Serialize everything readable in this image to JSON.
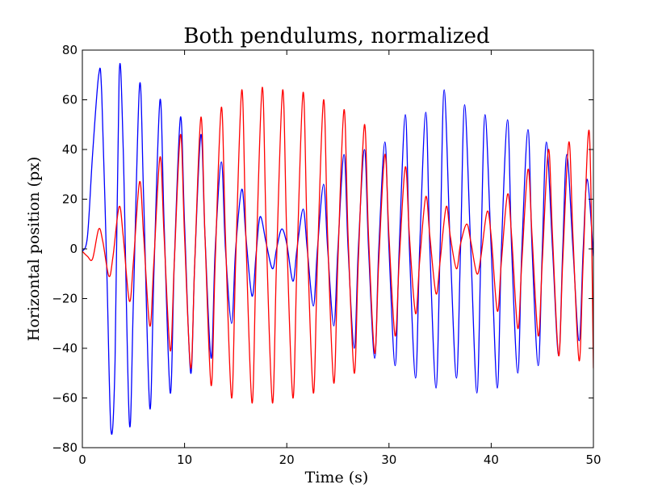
{
  "chart_data": {
    "type": "line",
    "title": "Both pendulums, normalized",
    "xlabel": "Time $(s)$",
    "xlabel_text": "Time (s)",
    "ylabel": "Horizontal position $(px)$",
    "ylabel_text": "Horizontal position (px)",
    "xlim": [
      0,
      50
    ],
    "ylim": [
      -80,
      80
    ],
    "x_ticks": [
      0,
      10,
      20,
      30,
      40,
      50
    ],
    "y_ticks": [
      -80,
      -60,
      -40,
      -20,
      0,
      20,
      40,
      60,
      80
    ],
    "grid": false,
    "series": [
      {
        "color": "#0000ff",
        "points": [
          [
            0.0,
            -1
          ],
          [
            0.5,
            5
          ],
          [
            1.0,
            38
          ],
          [
            1.6,
            70
          ],
          [
            1.9,
            62
          ],
          [
            2.4,
            -10
          ],
          [
            2.8,
            -73
          ],
          [
            3.2,
            -45
          ],
          [
            3.6,
            70
          ],
          [
            4.0,
            40
          ],
          [
            4.6,
            -70
          ],
          [
            5.0,
            -20
          ],
          [
            5.6,
            66
          ],
          [
            6.0,
            20
          ],
          [
            6.6,
            -64
          ],
          [
            7.0,
            -10
          ],
          [
            7.6,
            60
          ],
          [
            8.0,
            10
          ],
          [
            8.6,
            -58
          ],
          [
            9.0,
            -5
          ],
          [
            9.6,
            53
          ],
          [
            10.0,
            10
          ],
          [
            10.6,
            -50
          ],
          [
            11.0,
            -5
          ],
          [
            11.6,
            46
          ],
          [
            12.0,
            5
          ],
          [
            12.6,
            -44
          ],
          [
            13.0,
            0
          ],
          [
            13.6,
            35
          ],
          [
            14.0,
            0
          ],
          [
            14.6,
            -30
          ],
          [
            15.0,
            0
          ],
          [
            15.6,
            24
          ],
          [
            16.0,
            5
          ],
          [
            16.6,
            -19
          ],
          [
            17.0,
            -2
          ],
          [
            17.4,
            13
          ],
          [
            18.0,
            2
          ],
          [
            18.6,
            -8
          ],
          [
            19.0,
            0
          ],
          [
            19.5,
            8
          ],
          [
            20.0,
            2
          ],
          [
            20.6,
            -13
          ],
          [
            21.0,
            0
          ],
          [
            21.6,
            16
          ],
          [
            22.0,
            0
          ],
          [
            22.6,
            -23
          ],
          [
            23.0,
            0
          ],
          [
            23.6,
            26
          ],
          [
            24.0,
            0
          ],
          [
            24.6,
            -31
          ],
          [
            25.0,
            0
          ],
          [
            25.6,
            38
          ],
          [
            26.0,
            0
          ],
          [
            26.6,
            -40
          ],
          [
            27.0,
            0
          ],
          [
            27.6,
            40
          ],
          [
            28.0,
            0
          ],
          [
            28.6,
            -44
          ],
          [
            29.0,
            0
          ],
          [
            29.6,
            43
          ],
          [
            30.0,
            0
          ],
          [
            30.6,
            -47
          ],
          [
            31.0,
            0
          ],
          [
            31.6,
            54
          ],
          [
            32.0,
            0
          ],
          [
            32.6,
            -52
          ],
          [
            33.0,
            0
          ],
          [
            33.6,
            55
          ],
          [
            34.0,
            0
          ],
          [
            34.6,
            -56
          ],
          [
            35.0,
            0
          ],
          [
            35.4,
            64
          ],
          [
            36.0,
            0
          ],
          [
            36.6,
            -52
          ],
          [
            37.0,
            0
          ],
          [
            37.4,
            58
          ],
          [
            38.0,
            0
          ],
          [
            38.6,
            -58
          ],
          [
            39.0,
            0
          ],
          [
            39.4,
            54
          ],
          [
            40.0,
            0
          ],
          [
            40.6,
            -56
          ],
          [
            41.0,
            0
          ],
          [
            41.6,
            52
          ],
          [
            42.0,
            0
          ],
          [
            42.6,
            -50
          ],
          [
            43.0,
            0
          ],
          [
            43.6,
            48
          ],
          [
            44.0,
            0
          ],
          [
            44.6,
            -47
          ],
          [
            45.0,
            0
          ],
          [
            45.4,
            43
          ],
          [
            46.0,
            0
          ],
          [
            46.6,
            -43
          ],
          [
            47.0,
            0
          ],
          [
            47.4,
            38
          ],
          [
            48.0,
            0
          ],
          [
            48.6,
            -37
          ],
          [
            49.0,
            0
          ],
          [
            49.4,
            28
          ],
          [
            50.0,
            -3
          ]
        ]
      },
      {
        "color": "#ff0000",
        "points": [
          [
            0.0,
            -1
          ],
          [
            0.5,
            -3
          ],
          [
            1.0,
            -4
          ],
          [
            1.6,
            8
          ],
          [
            2.0,
            3
          ],
          [
            2.6,
            -11
          ],
          [
            3.0,
            -3
          ],
          [
            3.6,
            17
          ],
          [
            4.0,
            5
          ],
          [
            4.6,
            -21
          ],
          [
            5.0,
            -5
          ],
          [
            5.6,
            27
          ],
          [
            6.0,
            5
          ],
          [
            6.6,
            -31
          ],
          [
            7.0,
            -5
          ],
          [
            7.6,
            37
          ],
          [
            8.0,
            5
          ],
          [
            8.6,
            -41
          ],
          [
            9.0,
            -5
          ],
          [
            9.6,
            46
          ],
          [
            10.0,
            5
          ],
          [
            10.6,
            -48
          ],
          [
            11.0,
            -5
          ],
          [
            11.6,
            53
          ],
          [
            12.0,
            5
          ],
          [
            12.6,
            -55
          ],
          [
            13.0,
            -5
          ],
          [
            13.6,
            57
          ],
          [
            14.0,
            5
          ],
          [
            14.6,
            -60
          ],
          [
            15.0,
            -5
          ],
          [
            15.6,
            64
          ],
          [
            16.0,
            5
          ],
          [
            16.6,
            -62
          ],
          [
            17.0,
            -5
          ],
          [
            17.6,
            65
          ],
          [
            18.0,
            5
          ],
          [
            18.6,
            -62
          ],
          [
            19.0,
            -5
          ],
          [
            19.6,
            64
          ],
          [
            20.0,
            5
          ],
          [
            20.6,
            -60
          ],
          [
            21.0,
            -5
          ],
          [
            21.6,
            63
          ],
          [
            22.0,
            5
          ],
          [
            22.6,
            -58
          ],
          [
            23.0,
            -5
          ],
          [
            23.6,
            60
          ],
          [
            24.0,
            5
          ],
          [
            24.6,
            -54
          ],
          [
            25.0,
            -5
          ],
          [
            25.6,
            56
          ],
          [
            26.0,
            5
          ],
          [
            26.6,
            -50
          ],
          [
            27.0,
            -5
          ],
          [
            27.6,
            50
          ],
          [
            28.0,
            5
          ],
          [
            28.6,
            -42
          ],
          [
            29.0,
            -5
          ],
          [
            29.6,
            38
          ],
          [
            30.0,
            5
          ],
          [
            30.6,
            -35
          ],
          [
            31.0,
            -5
          ],
          [
            31.6,
            33
          ],
          [
            32.0,
            5
          ],
          [
            32.6,
            -26
          ],
          [
            33.0,
            -5
          ],
          [
            33.6,
            21
          ],
          [
            34.0,
            5
          ],
          [
            34.6,
            -18
          ],
          [
            35.0,
            -5
          ],
          [
            35.6,
            17
          ],
          [
            36.0,
            5
          ],
          [
            36.6,
            -8
          ],
          [
            37.0,
            2
          ],
          [
            37.6,
            10
          ],
          [
            38.0,
            3
          ],
          [
            38.6,
            -10
          ],
          [
            39.0,
            -3
          ],
          [
            39.6,
            15
          ],
          [
            40.0,
            5
          ],
          [
            40.6,
            -25
          ],
          [
            41.0,
            -5
          ],
          [
            41.6,
            22
          ],
          [
            42.0,
            5
          ],
          [
            42.6,
            -32
          ],
          [
            43.0,
            -5
          ],
          [
            43.6,
            32
          ],
          [
            44.0,
            5
          ],
          [
            44.6,
            -35
          ],
          [
            45.0,
            -5
          ],
          [
            45.6,
            40
          ],
          [
            46.0,
            5
          ],
          [
            46.6,
            -43
          ],
          [
            47.0,
            -5
          ],
          [
            47.6,
            43
          ],
          [
            48.0,
            5
          ],
          [
            48.6,
            -45
          ],
          [
            49.0,
            -5
          ],
          [
            49.6,
            47
          ],
          [
            50.0,
            -48
          ]
        ]
      }
    ]
  }
}
